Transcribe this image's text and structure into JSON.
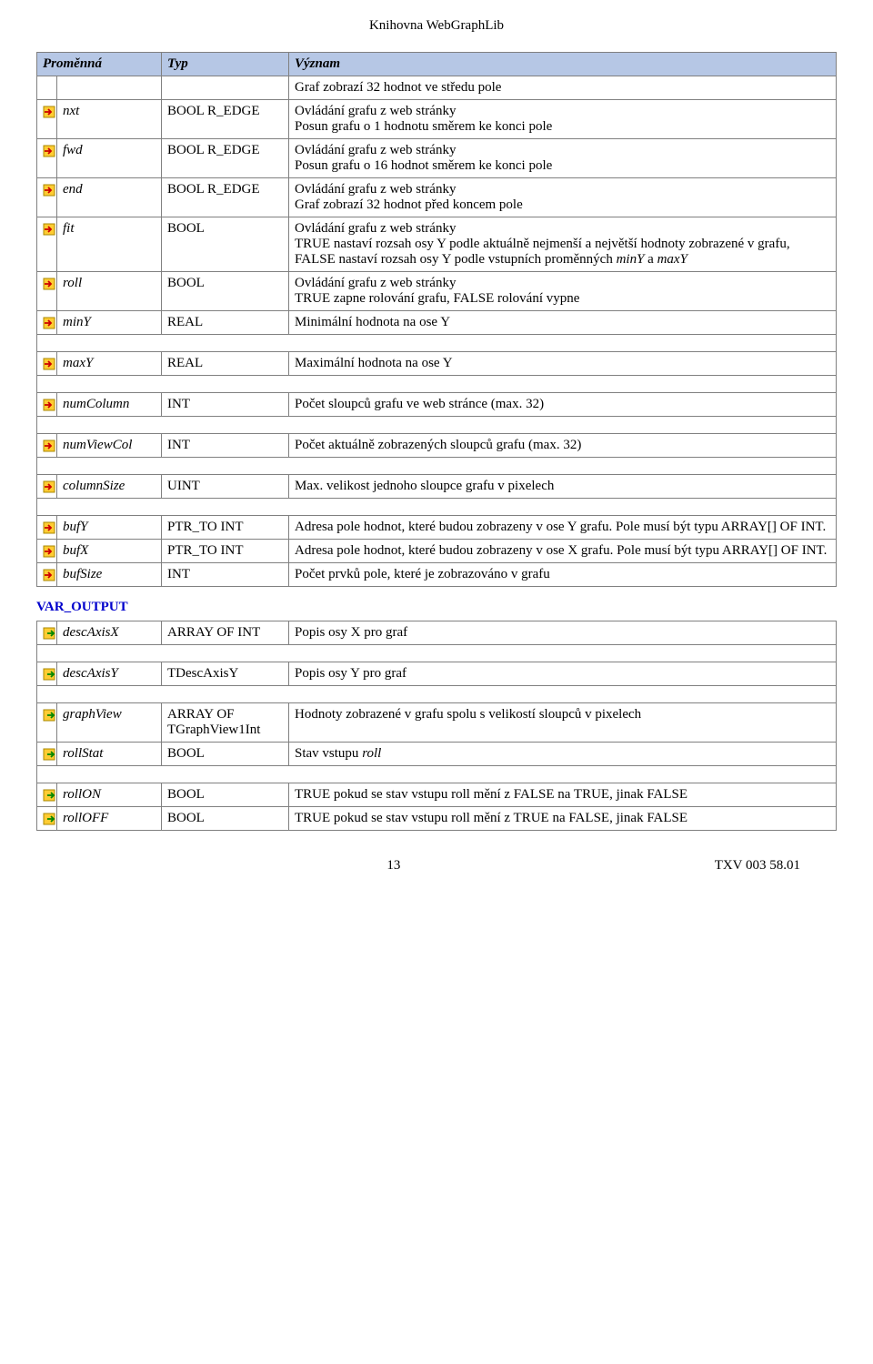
{
  "doc": {
    "title": "Knihovna WebGraphLib",
    "page_num": "13",
    "doc_ref": "TXV 003 58.01"
  },
  "table": {
    "header": {
      "col1": "Proměnná",
      "col2": "Typ",
      "col3": "Význam"
    },
    "pre_row": {
      "meaning": "Graf zobrazí 32 hodnot ve středu pole"
    },
    "rows": [
      {
        "icon": "in",
        "name": "nxt",
        "type": "BOOL R_EDGE",
        "meaning": "Ovládání grafu z web stránky\nPosun grafu o 1 hodnotu směrem ke konci pole"
      },
      {
        "icon": "in",
        "name": "fwd",
        "type": "BOOL R_EDGE",
        "meaning": "Ovládání grafu z web stránky\nPosun grafu o 16 hodnot směrem ke konci pole"
      },
      {
        "icon": "in",
        "name": "end",
        "type": "BOOL R_EDGE",
        "meaning": "Ovládání grafu z web stránky\nGraf zobrazí 32 hodnot před koncem pole"
      },
      {
        "icon": "in",
        "name": "fit",
        "type": "BOOL",
        "meaning": "Ovládání grafu z web stránky\nTRUE nastaví rozsah osy Y podle aktuálně nejmenší a největší hodnoty zobrazené v grafu, FALSE nastaví rozsah osy Y podle vstupních proměnných minY a maxY",
        "meaning_em": [
          "minY",
          "maxY"
        ]
      },
      {
        "icon": "in",
        "name": "roll",
        "type": "BOOL",
        "meaning": "Ovládání grafu z web stránky\nTRUE zapne rolování grafu, FALSE rolování vypne"
      },
      {
        "icon": "in",
        "name": "minY",
        "type": "REAL",
        "meaning": "Minimální hodnota na ose Y"
      },
      {
        "icon": "in",
        "name": "maxY",
        "type": "REAL",
        "meaning": "Maximální hodnota na ose Y",
        "spacer_before": true
      },
      {
        "icon": "in",
        "name": "numColumn",
        "type": "INT",
        "meaning": "Počet sloupců grafu ve web stránce (max. 32)",
        "spacer_before": true
      },
      {
        "icon": "in",
        "name": "numViewCol",
        "type": "INT",
        "meaning": "Počet aktuálně zobrazených sloupců grafu (max. 32)",
        "spacer_before": true
      },
      {
        "icon": "in",
        "name": "columnSize",
        "type": "UINT",
        "meaning": "Max. velikost jednoho sloupce grafu v pixelech",
        "spacer_before": true
      },
      {
        "icon": "in",
        "name": "bufY",
        "type": "PTR_TO INT",
        "meaning": "Adresa pole hodnot, které budou zobrazeny v ose Y grafu. Pole musí být typu ARRAY[] OF INT.",
        "spacer_before": true
      },
      {
        "icon": "in",
        "name": "bufX",
        "type": "PTR_TO INT",
        "meaning": "Adresa pole hodnot, které budou zobrazeny v ose X grafu. Pole musí být typu ARRAY[] OF INT."
      },
      {
        "icon": "in",
        "name": "bufSize",
        "type": "INT",
        "meaning": "Počet prvků pole, které je zobrazováno v grafu"
      }
    ],
    "section_output": "VAR_OUTPUT",
    "rows_out": [
      {
        "icon": "out",
        "name": "descAxisX",
        "type": "ARRAY OF INT",
        "meaning": "Popis osy X pro graf"
      },
      {
        "icon": "out",
        "name": "descAxisY",
        "type": "TDescAxisY",
        "meaning": "Popis osy Y pro graf",
        "spacer_before": true
      },
      {
        "icon": "out",
        "name": "graphView",
        "type": "ARRAY OF TGraphView1Int",
        "meaning": "Hodnoty zobrazené v grafu spolu s velikostí sloupců v pixelech",
        "spacer_before": true
      },
      {
        "icon": "out",
        "name": "rollStat",
        "type": "BOOL",
        "meaning": "Stav vstupu roll",
        "meaning_em": [
          "roll"
        ]
      },
      {
        "icon": "out",
        "name": "rollON",
        "type": "BOOL",
        "meaning": "TRUE pokud se stav vstupu roll mění z FALSE na TRUE, jinak FALSE",
        "spacer_before": true
      },
      {
        "icon": "out",
        "name": "rollOFF",
        "type": "BOOL",
        "meaning": "TRUE pokud se stav vstupu roll mění z TRUE na FALSE, jinak FALSE"
      }
    ]
  },
  "style": {
    "header_bg": "#b6c7e5",
    "border_color": "#808080",
    "link_color": "#0000cc",
    "icon_in_fill": "#ffcc33",
    "icon_out_fill": "#ffcc33",
    "arrow_color": "#cc0000",
    "arrow_out_color": "#008800"
  }
}
